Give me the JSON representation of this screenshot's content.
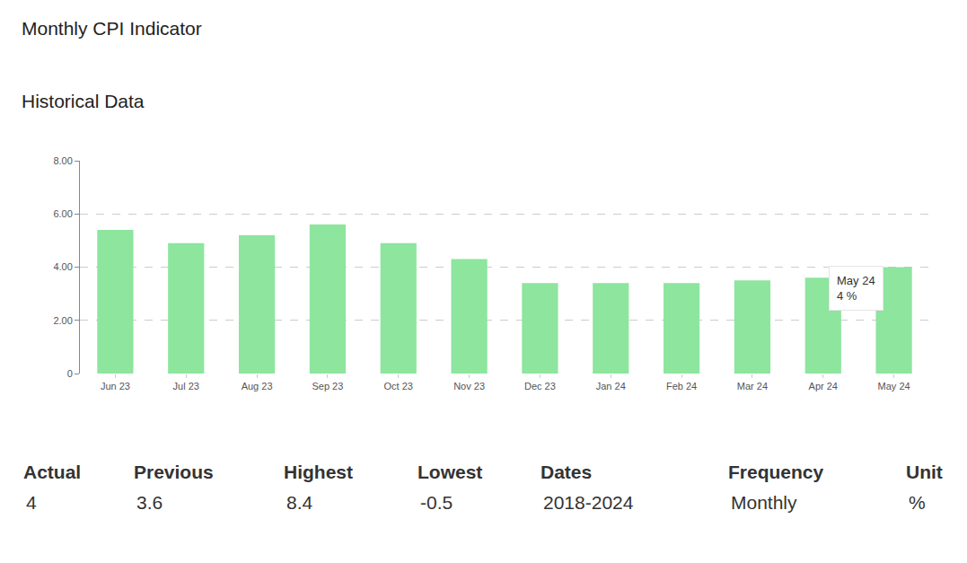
{
  "heading": "Monthly CPI Indicator",
  "chart_data": {
    "type": "bar",
    "title": "Historical Data",
    "categories": [
      "Jun 23",
      "Jul 23",
      "Aug 23",
      "Sep 23",
      "Oct 23",
      "Nov 23",
      "Dec 23",
      "Jan 24",
      "Feb 24",
      "Mar 24",
      "Apr 24",
      "May 24"
    ],
    "values": [
      5.4,
      4.9,
      5.2,
      5.6,
      4.9,
      4.3,
      3.4,
      3.4,
      3.4,
      3.5,
      3.6,
      4
    ],
    "color": "#8de59e",
    "ylim": [
      0,
      8
    ],
    "yticks": [
      0,
      {
        "value": 2,
        "label": "2.00"
      },
      {
        "value": 4,
        "label": "4.00"
      },
      {
        "value": 6,
        "label": "6.00"
      },
      {
        "value": 8,
        "label": "8.00"
      }
    ],
    "grid": true,
    "annotations": [
      {
        "category": "May 24",
        "value": 4,
        "text": [
          "May 24",
          "4 %"
        ]
      }
    ]
  },
  "summary": [
    {
      "label": "Actual",
      "value": 4
    },
    {
      "label": "Previous",
      "value": 3.6
    },
    {
      "label": "Highest",
      "value": 8.4
    },
    {
      "label": "Lowest",
      "value": -0.5
    },
    {
      "label": "Dates",
      "value": "2018-2024"
    },
    {
      "label": "Frequency",
      "value": "Monthly"
    },
    {
      "label": "Unit",
      "value": "%"
    }
  ]
}
